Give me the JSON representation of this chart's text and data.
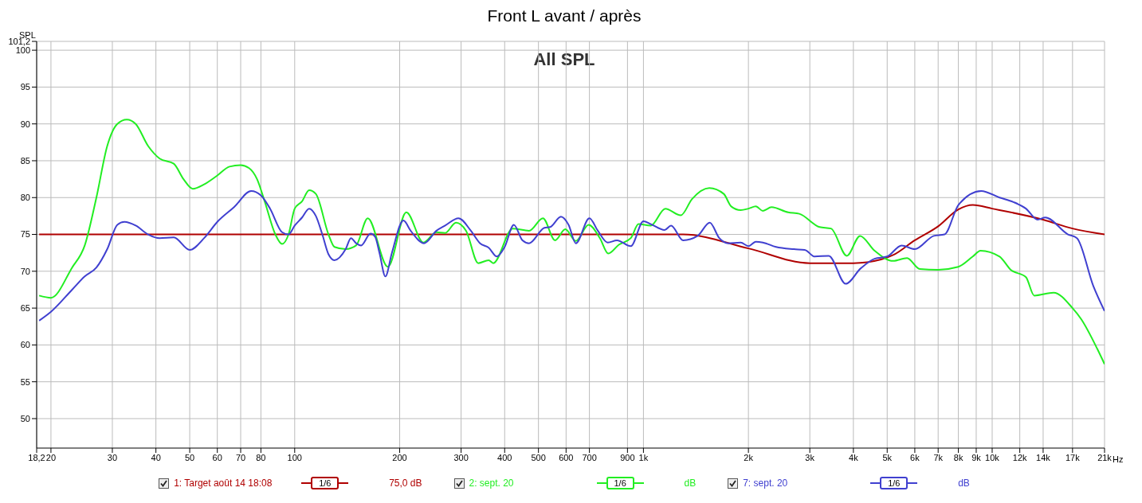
{
  "chart_data": {
    "type": "line",
    "title": "Front L avant / après",
    "ylabel": "SPL",
    "log": "x",
    "grid": true,
    "legend": "bottom",
    "marker": "none",
    "line_style": "solid",
    "xlim": [
      18.2,
      21000
    ],
    "ylim": [
      46,
      101.2
    ],
    "xticks": [
      {
        "value": 18.2,
        "label": "18,2"
      },
      20,
      30,
      40,
      50,
      60,
      70,
      80,
      100,
      200,
      300,
      400,
      500,
      600,
      700,
      {
        "value": 900,
        "label": "900"
      },
      {
        "value": 1000,
        "label": "1k"
      },
      {
        "value": 2000,
        "label": "2k"
      },
      {
        "value": 3000,
        "label": "3k"
      },
      {
        "value": 4000,
        "label": "4k"
      },
      {
        "value": 5000,
        "label": "5k"
      },
      {
        "value": 6000,
        "label": "6k"
      },
      {
        "value": 7000,
        "label": "7k"
      },
      {
        "value": 8000,
        "label": "8k"
      },
      {
        "value": 9000,
        "label": "9k"
      },
      {
        "value": 10000,
        "label": "10k"
      },
      {
        "value": 12000,
        "label": "12k"
      },
      {
        "value": 14000,
        "label": "14k"
      },
      {
        "value": 17000,
        "label": "17k"
      },
      {
        "value": 21000,
        "label": "21k"
      }
    ],
    "xlabel": "Hz",
    "yticks": [
      50,
      55,
      60,
      65,
      70,
      75,
      80,
      85,
      90,
      95,
      100,
      {
        "value": 101.2,
        "label": "101,2"
      }
    ],
    "annotations": [
      "All SPL",
      "1/6",
      "75,0 dB",
      "1/6",
      "dB",
      "1/6",
      "dB"
    ],
    "series": [
      {
        "name": "1: Target août 14 18:08",
        "color": "#b00000",
        "x": [
          18.5,
          100,
          1000,
          1300,
          2000,
          3000,
          4000,
          4800,
          5200,
          6000,
          7000,
          8000,
          8800,
          10000,
          14000,
          17000,
          21000
        ],
        "values": [
          75,
          75,
          75,
          75,
          73.1,
          71.1,
          71.1,
          71.6,
          72.2,
          74.2,
          76.1,
          78.4,
          79,
          78.5,
          77,
          75.8,
          75
        ]
      },
      {
        "name": "2: sept. 20",
        "color": "#22ee22",
        "x": [
          18.5,
          20,
          23,
          25,
          27,
          29,
          31,
          33,
          35,
          38,
          41,
          45,
          48,
          51,
          55,
          60,
          65,
          70,
          74,
          78,
          82,
          88,
          92,
          96,
          100,
          105,
          110,
          115,
          125,
          130,
          140,
          150,
          162,
          185,
          209,
          234,
          255,
          270,
          290,
          310,
          336,
          360,
          371,
          422,
          470,
          515,
          558,
          597,
          640,
          696,
          750,
          793,
          850,
          920,
          968,
          1050,
          1155,
          1280,
          1378,
          1545,
          1700,
          1785,
          1900,
          2000,
          2100,
          2200,
          2330,
          2600,
          2800,
          3200,
          3450,
          3830,
          4180,
          4600,
          5200,
          5700,
          6200,
          7000,
          8000,
          8800,
          9260,
          10500,
          11300,
          12500,
          13200,
          15000,
          17000,
          18000,
          20000,
          21000
        ],
        "values": [
          66.7,
          66.4,
          70.5,
          73.5,
          80,
          87,
          90,
          90.6,
          90,
          87,
          85.3,
          84.6,
          82.5,
          81.2,
          81.8,
          83,
          84.2,
          84.4,
          84,
          82.5,
          79.5,
          75,
          73.7,
          75,
          78.5,
          79.5,
          81,
          80.5,
          75,
          73.3,
          73,
          73.5,
          77.2,
          70.6,
          78,
          73.9,
          75.3,
          75.2,
          76.6,
          75.5,
          71.1,
          71.5,
          71.1,
          75.8,
          75.5,
          77.2,
          74.2,
          75.7,
          74.1,
          76.3,
          74.5,
          72.4,
          73.6,
          74.5,
          76.4,
          76.2,
          78.5,
          77.6,
          79.8,
          81.3,
          80.5,
          78.8,
          78.3,
          78.5,
          78.8,
          78.2,
          78.7,
          78,
          77.8,
          76,
          75.8,
          72.1,
          74.8,
          72.8,
          71.4,
          71.8,
          70.3,
          70.2,
          70.6,
          72,
          72.8,
          72,
          70.2,
          69.2,
          66.7,
          67.1,
          65,
          63.5,
          59.5,
          57.4
        ]
      },
      {
        "name": "7: sept. 20",
        "color": "#4040d0",
        "x": [
          18.5,
          20,
          23,
          25,
          27,
          29,
          31,
          32.5,
          35,
          38,
          41,
          45,
          50,
          55,
          60,
          67,
          75,
          80,
          85,
          92,
          96,
          100,
          105,
          110,
          115,
          120,
          125,
          130,
          140,
          145,
          150,
          155,
          165,
          170,
          175,
          182,
          190,
          205,
          215,
          235,
          255,
          270,
          295,
          320,
          340,
          360,
          380,
          400,
          425,
          450,
          470,
          520,
          540,
          580,
          610,
          640,
          700,
          740,
          790,
          840,
          920,
          1000,
          1050,
          1150,
          1200,
          1300,
          1430,
          1550,
          1650,
          1750,
          1900,
          2000,
          2100,
          2200,
          2400,
          2700,
          2900,
          3100,
          3400,
          3800,
          4200,
          4600,
          5000,
          5500,
          6000,
          6800,
          7300,
          8000,
          9300,
          10500,
          11500,
          12500,
          13500,
          14200,
          16500,
          17500,
          19500,
          21000
        ],
        "values": [
          63.3,
          64.5,
          67.5,
          69.3,
          70.5,
          73,
          76.3,
          76.7,
          76.2,
          75,
          74.5,
          74.6,
          72.9,
          74.5,
          76.7,
          78.7,
          80.9,
          80.3,
          78.5,
          75.3,
          75,
          76.2,
          77.3,
          78.5,
          77.5,
          75,
          72.3,
          71.5,
          73,
          74.5,
          73.8,
          73.5,
          75.1,
          74.7,
          72.5,
          69.3,
          72.5,
          76.9,
          75.5,
          73.8,
          75.5,
          76.2,
          77.2,
          75.5,
          73.8,
          73.2,
          72,
          73.3,
          76.3,
          74.2,
          73.8,
          75.9,
          76,
          77.4,
          76.3,
          73.8,
          77.2,
          75.5,
          73.9,
          74.2,
          73.4,
          76.8,
          76.4,
          75.6,
          76.2,
          74.2,
          74.8,
          76.6,
          74.5,
          73.8,
          73.9,
          73.4,
          74,
          73.9,
          73.3,
          73,
          72.9,
          72,
          72.1,
          68.3,
          70.4,
          71.7,
          72,
          73.5,
          73,
          74.8,
          75,
          79,
          80.9,
          80,
          79.4,
          78.5,
          77,
          77.3,
          75,
          74.5,
          68,
          64.6
        ]
      }
    ]
  }
}
